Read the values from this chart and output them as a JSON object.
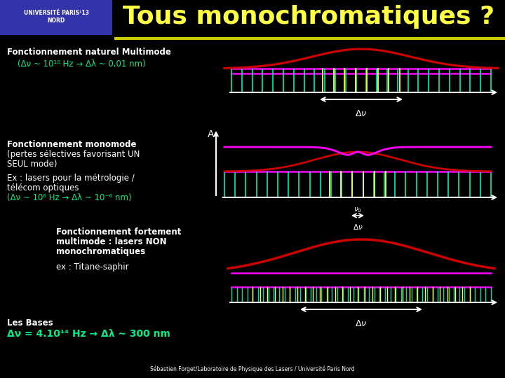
{
  "bg_color": "#000000",
  "title_text": "Tous monochromatiques ?",
  "title_color": "#FFFF44",
  "title_fontsize": 26,
  "section1_title": "Fonctionnement naturel Multimode",
  "section1_subtitle": "(Δν ~ 10¹⁰ Hz → Δλ ~ 0,01 nm)",
  "section2_title1": "Fonctionnement monomode",
  "section2_title2": "(pertes sélectives favorisant UN",
  "section2_title3": "SEUL mode)",
  "section2_sub1": "Ex : lasers pour la métrologie /",
  "section2_sub2": "télécom optiques",
  "section2_sub3": "(Δν ~ 10⁶ Hz → Δλ ~ 10⁻⁶ nm)",
  "section3_title1": "Fonctionnement fortement",
  "section3_title2": "multimode : lasers NON",
  "section3_title3": "monochromatiques",
  "section3_sub": "ex : Titane-saphir",
  "footer_text1": "Δν = 4.10¹⁴ Hz → Δλ ~ 300 nm",
  "footer_text2": "Sébastien Forget/Laboratoire de Physique des Lasers / Université Paris Nord",
  "les_bases": "Les Bases",
  "text_white": "#FFFFFF",
  "text_yellow": "#FFFF44",
  "text_green": "#00EE88",
  "logo_bg": "#3333AA",
  "header_line_color": "#CCCC00",
  "envelope_color": "#CC0000",
  "line_color_magenta": "#FF00FF",
  "comb_color_cyan": "#00DDAA",
  "comb_color_yellow": "#FFFF44",
  "arrow_color": "#FFFFFF"
}
